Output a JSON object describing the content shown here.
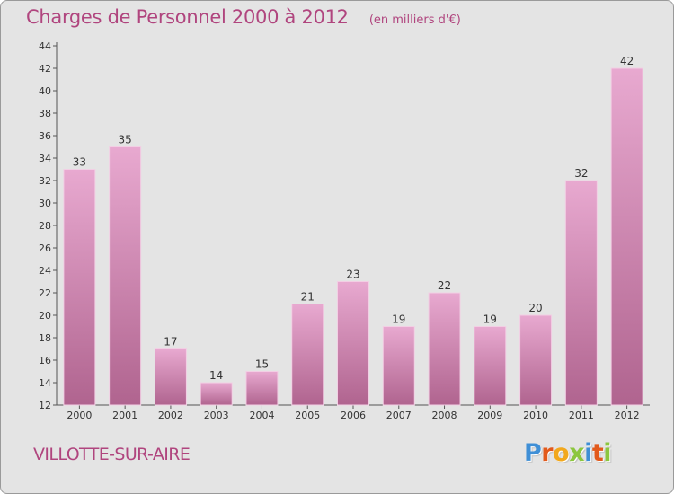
{
  "header": {
    "title": "Charges de Personnel 2000 à 2012",
    "subtitle": "(en milliers d'€)"
  },
  "footer": {
    "commune": "VILLOTTE-SUR-AIRE",
    "logo_letters": [
      {
        "char": "P",
        "color": "#3f8fd6"
      },
      {
        "char": "r",
        "color": "#e25a1c"
      },
      {
        "char": "o",
        "color": "#f2a81d"
      },
      {
        "char": "x",
        "color": "#8cc63f"
      },
      {
        "char": "i",
        "color": "#3f8fd6"
      },
      {
        "char": "t",
        "color": "#e25a1c"
      },
      {
        "char": "i",
        "color": "#8cc63f"
      }
    ]
  },
  "colors": {
    "bar_top": "#e8a9d0",
    "bar_bottom": "#b0648f",
    "accent_text": "#b0457e",
    "background": "#e4e4e4"
  },
  "chart_data": {
    "type": "bar",
    "title": "Charges de Personnel 2000 à 2012",
    "subtitle": "(en milliers d'€)",
    "xlabel": "",
    "ylabel": "",
    "categories": [
      "2000",
      "2001",
      "2002",
      "2003",
      "2004",
      "2005",
      "2006",
      "2007",
      "2008",
      "2009",
      "2010",
      "2011",
      "2012"
    ],
    "values": [
      33,
      35,
      17,
      14,
      15,
      21,
      23,
      19,
      22,
      19,
      20,
      32,
      42
    ],
    "ylim": [
      12,
      44
    ],
    "yticks": [
      12,
      14,
      16,
      18,
      20,
      22,
      24,
      26,
      28,
      30,
      32,
      34,
      36,
      38,
      40,
      42,
      44
    ],
    "grid": false,
    "legend": "none"
  }
}
